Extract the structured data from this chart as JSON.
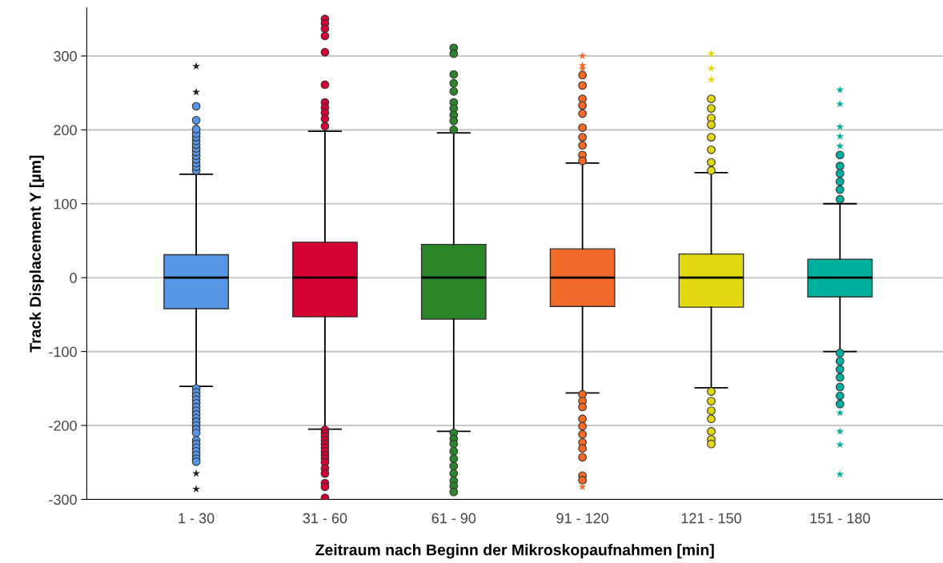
{
  "chart_data": {
    "type": "box",
    "xlabel": "Zeitraum nach Beginn der Mikroskopaufnahmen [min]",
    "ylabel": "Track Displacement Y [µm]",
    "categories": [
      "1 - 30",
      "31 - 60",
      "61 - 90",
      "91 - 120",
      "121 - 150",
      "151 - 180"
    ],
    "colors": [
      "#5596e6",
      "#d50032",
      "#2a8628",
      "#f26a2a",
      "#e2d80f",
      "#00b09e"
    ],
    "boxes": [
      {
        "low": -147,
        "q1": -42,
        "median": 0,
        "q3": 31,
        "high": 140,
        "outliers": [
          145,
          150,
          155,
          160,
          165,
          170,
          175,
          180,
          185,
          190,
          195,
          201,
          213,
          232,
          -150,
          -155,
          -160,
          -165,
          -170,
          -175,
          -180,
          -185,
          -190,
          -195,
          -200,
          -205,
          -210,
          -220,
          -225,
          -230,
          -235,
          -240,
          -245,
          -249
        ]
      },
      {
        "low": -205,
        "q1": -53,
        "median": 0,
        "q3": 48,
        "high": 198,
        "outliers": [
          350,
          344,
          337,
          327,
          305,
          261,
          237,
          230,
          223,
          215,
          205,
          -206,
          -210,
          -215,
          -220,
          -225,
          -230,
          -235,
          -240,
          -245,
          -250,
          -258,
          -265,
          -278,
          -283,
          -298
        ]
      },
      {
        "low": -208,
        "q1": -56,
        "median": 0,
        "q3": 45,
        "high": 196,
        "outliers": [
          311,
          303,
          275,
          263,
          252,
          237,
          229,
          220,
          212,
          200,
          -210,
          -218,
          -225,
          -235,
          -245,
          -255,
          -265,
          -275,
          -282,
          -290
        ]
      },
      {
        "low": -156,
        "q1": -39,
        "median": 0,
        "q3": 39,
        "high": 155,
        "outliers": [
          274,
          260,
          242,
          233,
          222,
          203,
          190,
          179,
          166,
          158,
          -158,
          -167,
          -175,
          -191,
          -201,
          -212,
          -223,
          -231,
          -243,
          -268,
          -274
        ]
      },
      {
        "low": -149,
        "q1": -40,
        "median": 0,
        "q3": 32,
        "high": 142,
        "outliers": [
          242,
          229,
          216,
          207,
          190,
          173,
          156,
          145,
          -154,
          -167,
          -180,
          -191,
          -208,
          -219,
          -225
        ]
      },
      {
        "low": -100,
        "q1": -26,
        "median": 0,
        "q3": 25,
        "high": 100,
        "outliers": [
          166,
          151,
          141,
          130,
          119,
          106,
          -102,
          -113,
          -124,
          -135,
          -148,
          -160,
          -171
        ]
      }
    ],
    "series": [
      {
        "type": "scatter",
        "marker": "star",
        "x": [
          "1 - 30",
          "1 - 30",
          "1 - 30",
          "1 - 30",
          "91 - 120",
          "91 - 120",
          "91 - 120",
          "91 - 120",
          "121 - 150",
          "121 - 150",
          "121 - 150",
          "151 - 180",
          "151 - 180",
          "151 - 180",
          "151 - 180",
          "151 - 180",
          "151 - 180",
          "151 - 180",
          "151 - 180",
          "151 - 180"
        ],
        "values": [
          286,
          251,
          -265,
          -286,
          300,
          287,
          283,
          -283,
          303,
          283,
          268,
          254,
          235,
          204,
          191,
          178,
          -183,
          -208,
          -226,
          -266
        ],
        "colors": [
          "#222222",
          "#222222",
          "#222222",
          "#222222",
          "#f26a2a",
          "#f26a2a",
          "#f26a2a",
          "#f26a2a",
          "#e2d80f",
          "#e2d80f",
          "#e2d80f",
          "#00b09e",
          "#00b09e",
          "#00b09e",
          "#00b09e",
          "#00b09e",
          "#00b09e",
          "#00b09e",
          "#00b09e",
          "#00b09e"
        ]
      }
    ],
    "ylim": [
      -300,
      365
    ],
    "yticks": [
      -300,
      -200,
      -100,
      0,
      100,
      200,
      300
    ],
    "grid": "y",
    "marker": "circle"
  }
}
